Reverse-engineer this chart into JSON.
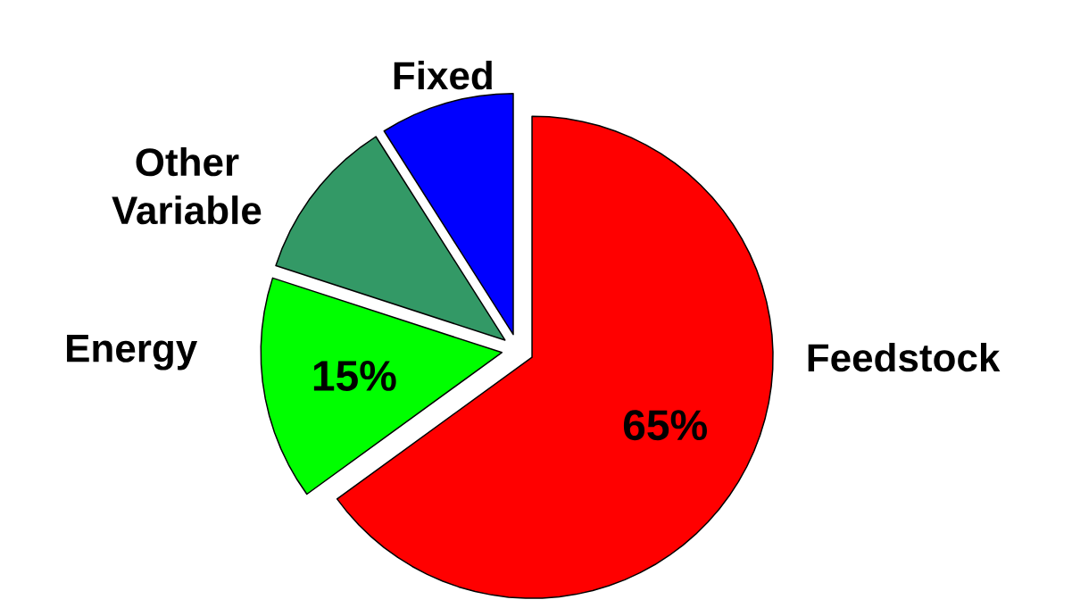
{
  "chart_data": {
    "type": "pie",
    "categories": [
      "Feedstock",
      "Energy",
      "Other Variable",
      "Fixed"
    ],
    "values": [
      65,
      15,
      11,
      9
    ],
    "colors": [
      "#ff0000",
      "#00ff00",
      "#339966",
      "#0000ff"
    ],
    "value_labels": [
      "65%",
      "15%",
      null,
      null
    ]
  }
}
